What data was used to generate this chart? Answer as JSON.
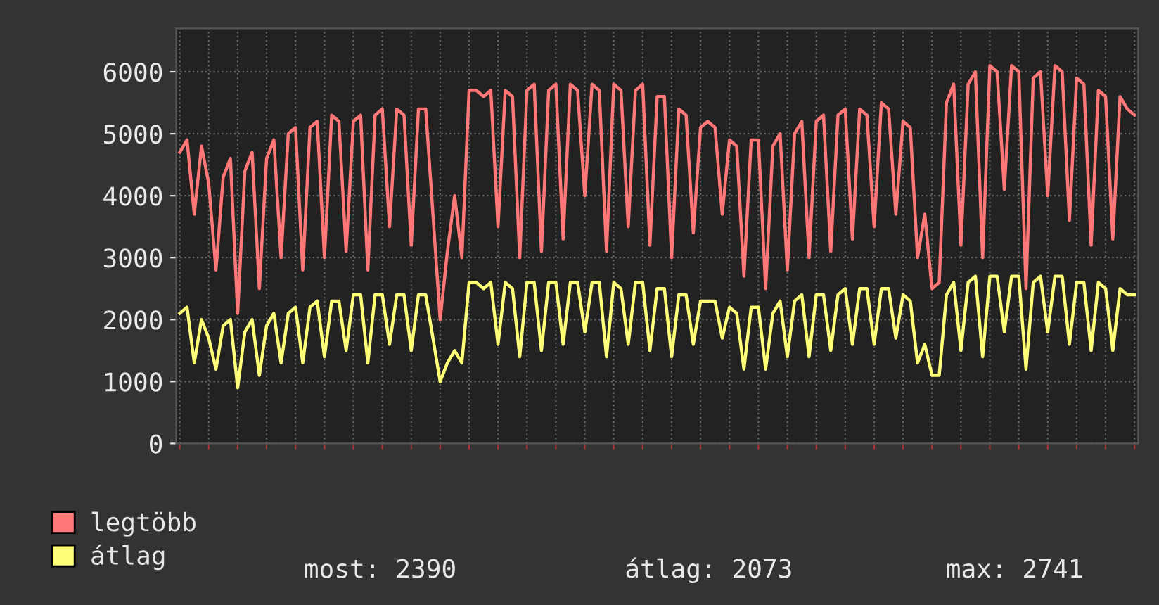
{
  "chart_data": {
    "type": "line",
    "categories": [
      null,
      null,
      null,
      null,
      null,
      null,
      null,
      null,
      null,
      null,
      null,
      null,
      null,
      null,
      null,
      null,
      null,
      null,
      null,
      null,
      null,
      null,
      null,
      null,
      null,
      null,
      null,
      null,
      null,
      null,
      null,
      null,
      null,
      null,
      null,
      null,
      null,
      null,
      null,
      null,
      null,
      null,
      null,
      null,
      null,
      null,
      null,
      null,
      null,
      null,
      null,
      null,
      null,
      null,
      null,
      null,
      null,
      null,
      null,
      null,
      null,
      null,
      null,
      null,
      null,
      null,
      null,
      null,
      null,
      null,
      null,
      null,
      null,
      null,
      null,
      null,
      null,
      null,
      null,
      null,
      null,
      null,
      null,
      null,
      null,
      null,
      null,
      null,
      null,
      null,
      null,
      null,
      null,
      null,
      null,
      null,
      null,
      null,
      null,
      null,
      null,
      null,
      null,
      null,
      null,
      null,
      null,
      null,
      null,
      null,
      null,
      null,
      null,
      null,
      null,
      null,
      null,
      null,
      null,
      null,
      null,
      null,
      null,
      null,
      null,
      null,
      null,
      null,
      null,
      null,
      null,
      null,
      null
    ],
    "series": [
      {
        "name": "legtöbb",
        "color": "#ff7777",
        "values": [
          4700,
          4900,
          3700,
          4800,
          4200,
          2800,
          4300,
          4600,
          2100,
          4400,
          4700,
          2500,
          4600,
          4900,
          3000,
          5000,
          5100,
          2800,
          5100,
          5200,
          3000,
          5300,
          5200,
          3100,
          5200,
          5300,
          2800,
          5300,
          5400,
          3500,
          5400,
          5300,
          3200,
          5400,
          5400,
          3700,
          2000,
          3100,
          4000,
          3000,
          5700,
          5700,
          5600,
          5700,
          3500,
          5700,
          5600,
          3000,
          5700,
          5800,
          3100,
          5700,
          5800,
          3300,
          5800,
          5700,
          4000,
          5800,
          5700,
          3100,
          5800,
          5700,
          3500,
          5700,
          5800,
          3200,
          5600,
          5600,
          3000,
          5400,
          5300,
          3400,
          5100,
          5200,
          5100,
          3700,
          4900,
          4800,
          2700,
          4900,
          4900,
          2500,
          4800,
          5000,
          2800,
          5000,
          5200,
          3000,
          5200,
          5300,
          3100,
          5300,
          5400,
          3300,
          5400,
          5300,
          3500,
          5500,
          5400,
          3700,
          5200,
          5100,
          3000,
          3700,
          2500,
          2600,
          5500,
          5800,
          3200,
          5800,
          6000,
          3000,
          6100,
          6000,
          4100,
          6100,
          6000,
          2500,
          5900,
          6000,
          4000,
          6100,
          6000,
          3600,
          5900,
          5800,
          3200,
          5700,
          5600,
          3300,
          5600,
          5400,
          5300
        ]
      },
      {
        "name": "átlag",
        "color": "#ffff77",
        "values": [
          2100,
          2200,
          1300,
          2000,
          1700,
          1200,
          1900,
          2000,
          900,
          1800,
          2000,
          1100,
          1900,
          2100,
          1300,
          2100,
          2200,
          1300,
          2200,
          2300,
          1400,
          2300,
          2300,
          1500,
          2400,
          2400,
          1300,
          2400,
          2400,
          1600,
          2400,
          2400,
          1500,
          2400,
          2400,
          1700,
          1000,
          1300,
          1500,
          1300,
          2600,
          2600,
          2500,
          2600,
          1600,
          2600,
          2500,
          1400,
          2600,
          2600,
          1500,
          2600,
          2600,
          1600,
          2600,
          2600,
          1800,
          2600,
          2600,
          1400,
          2600,
          2500,
          1600,
          2600,
          2600,
          1500,
          2500,
          2500,
          1400,
          2400,
          2400,
          1600,
          2300,
          2300,
          2300,
          1700,
          2200,
          2100,
          1200,
          2200,
          2200,
          1200,
          2100,
          2300,
          1400,
          2300,
          2400,
          1400,
          2400,
          2400,
          1500,
          2400,
          2500,
          1600,
          2500,
          2500,
          1600,
          2500,
          2500,
          1700,
          2400,
          2300,
          1300,
          1600,
          1100,
          1100,
          2400,
          2600,
          1500,
          2600,
          2700,
          1400,
          2700,
          2700,
          1800,
          2700,
          2700,
          1200,
          2600,
          2700,
          1800,
          2700,
          2700,
          1600,
          2600,
          2600,
          1500,
          2600,
          2500,
          1500,
          2500,
          2400,
          2400
        ]
      }
    ],
    "ylim": [
      0,
      6700
    ],
    "yticks": [
      0,
      1000,
      2000,
      3000,
      4000,
      5000,
      6000
    ],
    "grid": true,
    "legend": "bottom left",
    "marker": "none",
    "line_style": "solid",
    "annotations": [
      "most: 2390",
      "átlag: 2073",
      "max: 2741"
    ]
  }
}
